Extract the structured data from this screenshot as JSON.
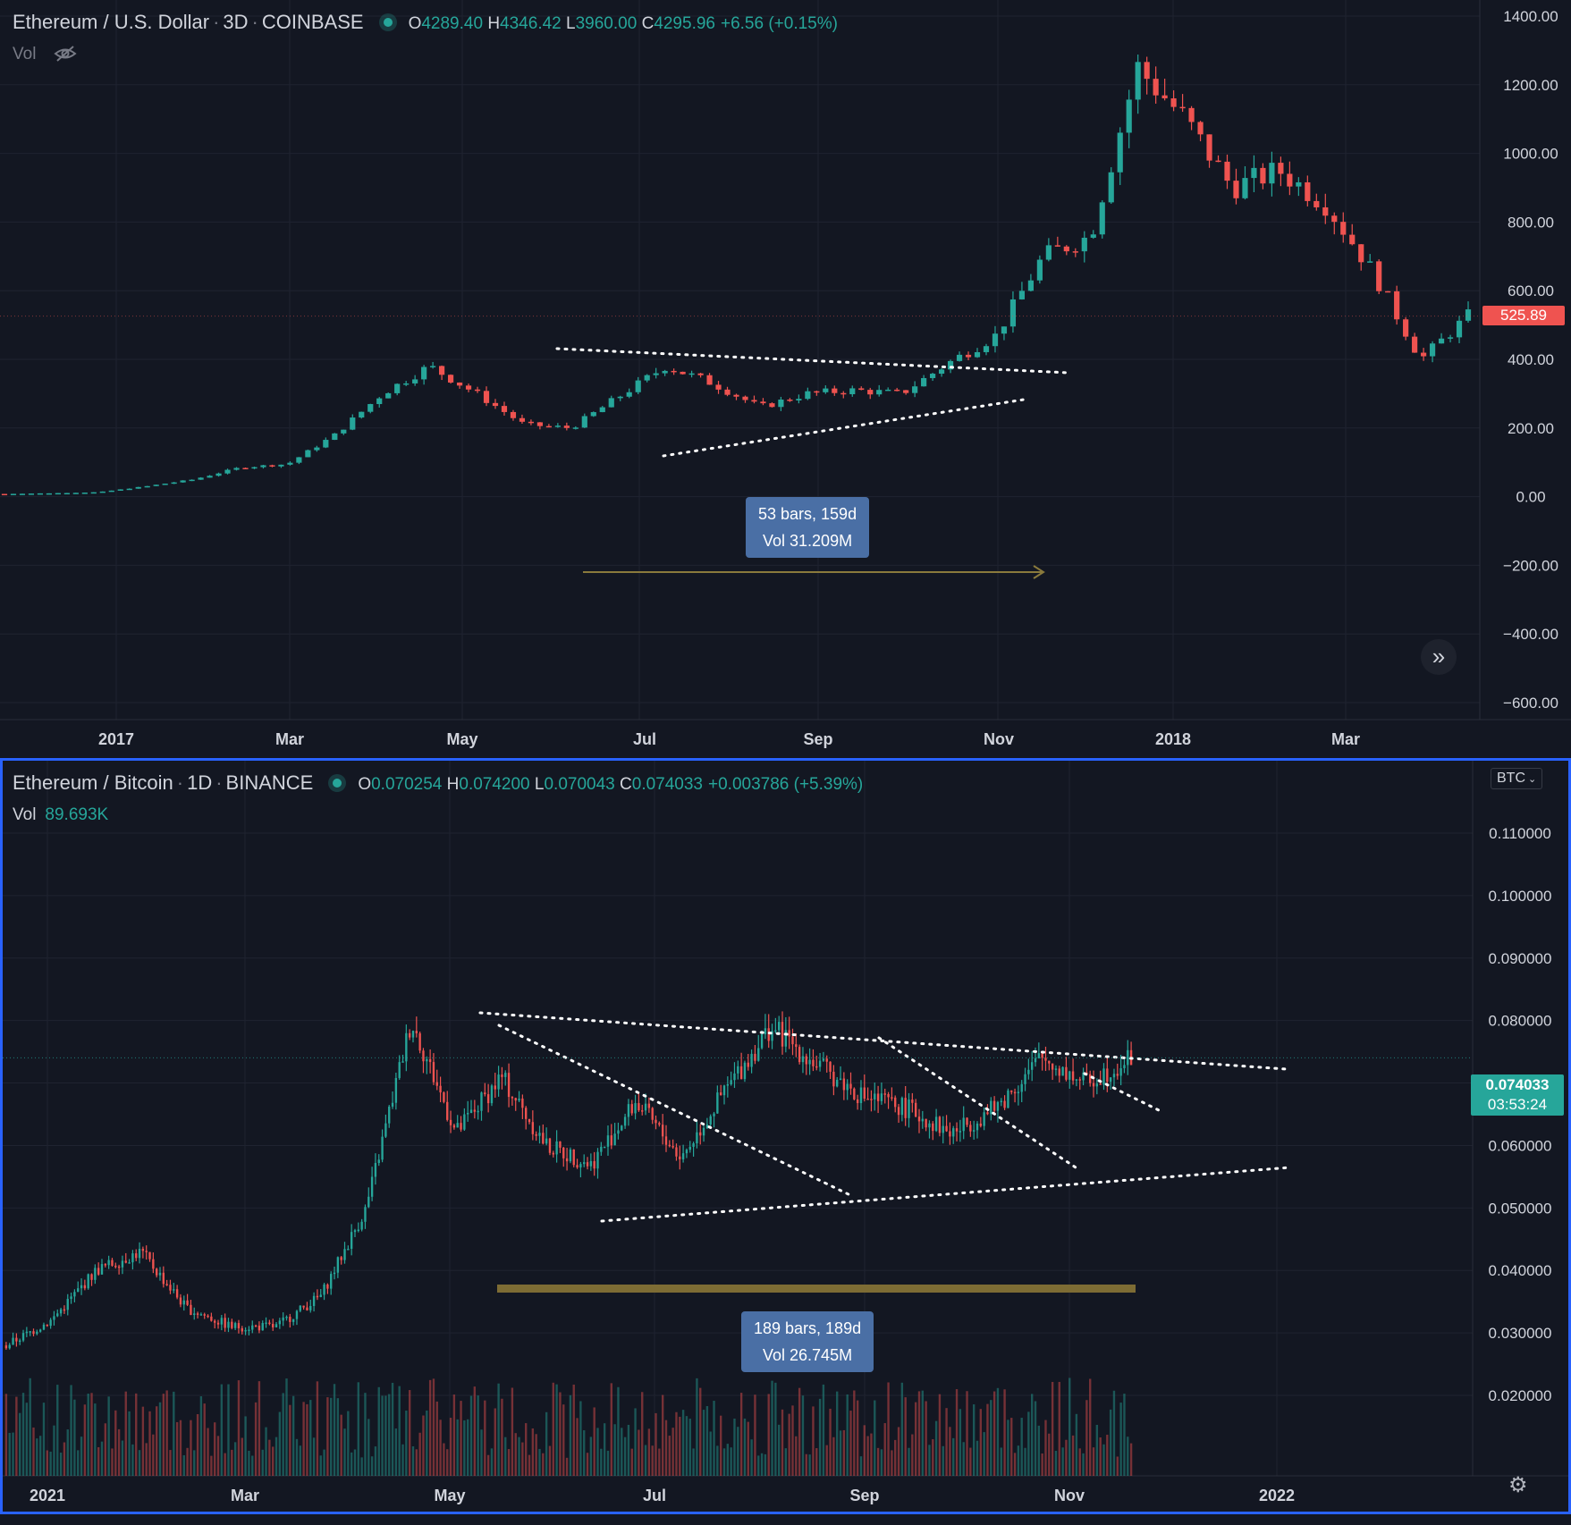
{
  "colors": {
    "up": "#26a69a",
    "down": "#ef5350",
    "bg": "#131722",
    "grid": "#1f2330",
    "selected_border": "#2962ff",
    "measure": "#4a6fa5"
  },
  "icons": [
    "eye-slash-icon",
    "fast-forward-icon",
    "chevron-down-icon",
    "gear-icon"
  ],
  "top_chart": {
    "symbol": "Ethereum / U.S. Dollar",
    "interval": "3D",
    "exchange": "COINBASE",
    "ohlc": {
      "o_label": "O",
      "o": "4289.40",
      "h_label": "H",
      "h": "4346.42",
      "l_label": "L",
      "l": "3960.00",
      "c_label": "C",
      "c": "4295.96",
      "change": "+6.56 (+0.15%)"
    },
    "vol_label": "Vol",
    "price_axis": [
      "1400.00",
      "1200.00",
      "1000.00",
      "800.00",
      "600.00",
      "400.00",
      "200.00",
      "0.00",
      "−200.00",
      "−400.00",
      "−600.00"
    ],
    "last_price": "525.89",
    "time_axis": [
      "2017",
      "Mar",
      "May",
      "Jul",
      "Sep",
      "Nov",
      "2018",
      "Mar"
    ],
    "measure": {
      "line1": "53 bars, 159d",
      "line2": "Vol 31.209M"
    },
    "scroll_button": "»"
  },
  "bottom_chart": {
    "symbol": "Ethereum / Bitcoin",
    "interval": "1D",
    "exchange": "BINANCE",
    "ohlc": {
      "o_label": "O",
      "o": "0.070254",
      "h_label": "H",
      "h": "0.074200",
      "l_label": "L",
      "l": "0.070043",
      "c_label": "C",
      "c": "0.074033",
      "change": "+0.003786 (+5.39%)"
    },
    "vol_label": "Vol",
    "vol_value": "89.693K",
    "currency": "BTC",
    "price_axis": [
      "0.110000",
      "0.100000",
      "0.090000",
      "0.080000",
      "0.070000",
      "0.060000",
      "0.050000",
      "0.040000",
      "0.030000",
      "0.020000"
    ],
    "last_price": "0.074033",
    "countdown": "03:53:24",
    "time_axis": [
      "2021",
      "Mar",
      "May",
      "Jul",
      "Sep",
      "Nov",
      "2022"
    ],
    "measure": {
      "line1": "189 bars, 189d",
      "line2": "Vol 26.745M"
    }
  },
  "chart_data": [
    {
      "type": "candlestick",
      "title": "Ethereum / U.S. Dollar · 3D · COINBASE",
      "ylim": [
        -600,
        1400
      ],
      "x": [
        "2016-12",
        "2017-01",
        "2017-02",
        "2017-03",
        "2017-04",
        "2017-05-01",
        "2017-05-10",
        "2017-05-20",
        "2017-06-01",
        "2017-06-10",
        "2017-06-20",
        "2017-07-01",
        "2017-07-15",
        "2017-08-01",
        "2017-08-15",
        "2017-09-01",
        "2017-09-15",
        "2017-10-01",
        "2017-10-15",
        "2017-11-01",
        "2017-11-15",
        "2017-12-01",
        "2017-12-15",
        "2018-01-01",
        "2018-01-10",
        "2018-01-20",
        "2018-02-01",
        "2018-02-15",
        "2018-03-01",
        "2018-03-15",
        "2018-04-01",
        "2018-04-10"
      ],
      "close": [
        8,
        10,
        13,
        30,
        50,
        85,
        95,
        180,
        300,
        380,
        300,
        210,
        200,
        290,
        380,
        330,
        260,
        300,
        310,
        300,
        390,
        470,
        700,
        760,
        1250,
        1100,
        900,
        950,
        850,
        650,
        400,
        525.89
      ],
      "annotations": [
        "triangle trendlines",
        "measure 53 bars, 159d"
      ]
    },
    {
      "type": "candlestick",
      "title": "Ethereum / Bitcoin · 1D · BINANCE",
      "ylim": [
        0.015,
        0.12
      ],
      "x": [
        "2021-01-01",
        "2021-01-15",
        "2021-02-01",
        "2021-02-15",
        "2021-03-01",
        "2021-03-15",
        "2021-04-01",
        "2021-04-15",
        "2021-05-01",
        "2021-05-10",
        "2021-05-20",
        "2021-06-01",
        "2021-06-15",
        "2021-07-01",
        "2021-07-15",
        "2021-08-01",
        "2021-08-15",
        "2021-09-01",
        "2021-09-10",
        "2021-09-20",
        "2021-10-01",
        "2021-10-15",
        "2021-10-25",
        "2021-11-05",
        "2021-11-15",
        "2021-11-22"
      ],
      "close": [
        0.028,
        0.032,
        0.04,
        0.043,
        0.034,
        0.031,
        0.031,
        0.036,
        0.05,
        0.08,
        0.062,
        0.071,
        0.06,
        0.057,
        0.067,
        0.058,
        0.069,
        0.079,
        0.073,
        0.068,
        0.066,
        0.062,
        0.066,
        0.074,
        0.07,
        0.074033
      ],
      "annotations": [
        "triangle trendlines",
        "measure 189 bars, 189d"
      ]
    }
  ]
}
